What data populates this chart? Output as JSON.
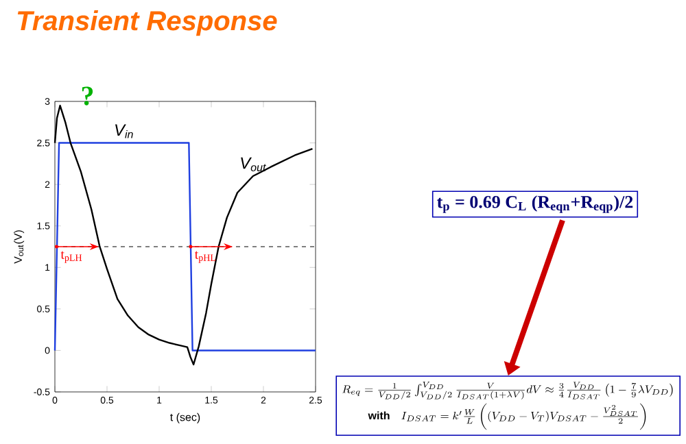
{
  "chart_data": {
    "type": "line",
    "title": "Transient Response",
    "xlabel": "t (sec)",
    "ylabel": "V$_{out}$(V)",
    "xlim": [
      0,
      2.5
    ],
    "ylim": [
      -0.5,
      3
    ],
    "xticks": [
      0,
      0.5,
      1,
      1.5,
      2,
      2.5
    ],
    "yticks": [
      -0.5,
      0,
      0.5,
      1,
      1.5,
      2,
      2.5,
      3
    ],
    "grid": false,
    "marker": "none",
    "line_style": "solid",
    "series": [
      {
        "name": "V$_{in}$",
        "color": "#1f3fe0",
        "x": [
          0,
          0.04,
          1.285,
          1.32,
          2.5
        ],
        "values": [
          0,
          2.5,
          2.5,
          0,
          0
        ]
      },
      {
        "name": "V$_{out}$",
        "color": "#000000",
        "x": [
          0,
          0.02,
          0.05,
          0.1,
          0.15,
          0.25,
          0.35,
          0.43,
          0.5,
          0.6,
          0.7,
          0.8,
          0.9,
          1.0,
          1.1,
          1.2,
          1.27,
          1.3,
          1.33,
          1.38,
          1.45,
          1.5,
          1.57,
          1.65,
          1.75,
          1.9,
          2.07,
          2.3,
          2.47
        ],
        "values": [
          2.5,
          2.8,
          2.95,
          2.75,
          2.5,
          2.15,
          1.7,
          1.25,
          0.98,
          0.62,
          0.42,
          0.28,
          0.19,
          0.13,
          0.09,
          0.06,
          0.04,
          -0.08,
          -0.17,
          0.05,
          0.45,
          0.8,
          1.25,
          1.6,
          1.9,
          2.1,
          2.21,
          2.35,
          2.43
        ]
      }
    ],
    "ref_lines": [
      {
        "axis": "y",
        "value": 1.25,
        "line_style": "dashed",
        "color": "#000000"
      }
    ],
    "annotations": [
      {
        "text": "t$_{pLH}$",
        "x": 0,
        "y": 1.25
      },
      {
        "text": "t$_{pHL}$",
        "x": 1.285,
        "y": 1.25
      },
      "?",
      "t$_{p}$ = 0.69 C$_{L}$ (R$_{eqn}$+R$_{eqp}$)/2",
      "R_{eq}=\\frac{1}{V_{DD}/2}\\int_{V_{DD}/2}^{V_{DD}}\\frac{V}{I_{DSAT}(1+\\lambda V)}dV\\approx\\frac{3}{4}\\frac{V_{DD}}{I_{DSAT}}\\left(1-\\frac{7}{9}\\lambda V_{DD}\\right)",
      "\\mathbf{with}\\quad I_{DSAT}=k'\\frac{W}{L}\\left((V_{DD}-V_T)V_{DSAT}-\\frac{V_{DSAT}^2}{2}\\right)"
    ]
  }
}
